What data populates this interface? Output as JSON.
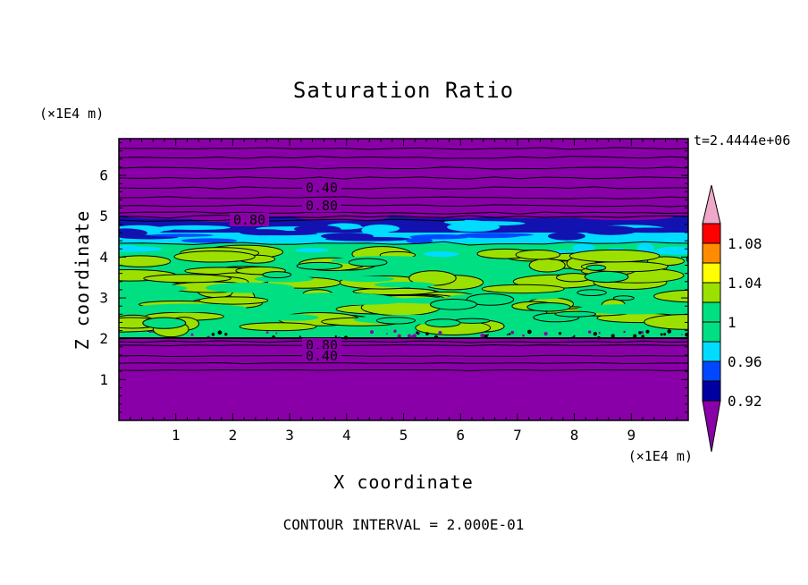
{
  "title": "Saturation Ratio",
  "timestamp": "t=2.4444e+06",
  "contour_note": "CONTOUR INTERVAL = 2.000E-01",
  "axes": {
    "x_label": "X coordinate",
    "y_label": "Z coordinate",
    "x_unit": "(×1E4 m)",
    "y_unit": "(×1E4 m)",
    "x_ticks": [
      "1",
      "2",
      "3",
      "4",
      "5",
      "6",
      "7",
      "8",
      "9"
    ],
    "y_ticks": [
      "1",
      "2",
      "3",
      "4",
      "5",
      "6"
    ]
  },
  "contour_labels": [
    {
      "text": "0.40"
    },
    {
      "text": "0.80"
    },
    {
      "text": "0.80"
    },
    {
      "text": "0.80"
    },
    {
      "text": "0.40"
    }
  ],
  "colorbar": {
    "labels": [
      {
        "text": "1.08"
      },
      {
        "text": "1.04"
      },
      {
        "text": "1"
      },
      {
        "text": "0.96"
      },
      {
        "text": "0.92"
      }
    ],
    "segments": [
      {
        "name": "above-range-arrow",
        "color": "#F0A8C8"
      },
      {
        "name": "band-1.08-1.10",
        "color": "#FF0000"
      },
      {
        "name": "band-1.06-1.08",
        "color": "#FF8C00"
      },
      {
        "name": "band-1.04-1.06",
        "color": "#FFFF00"
      },
      {
        "name": "band-1.02-1.04",
        "color": "#9CE000"
      },
      {
        "name": "band-1.00-1.02",
        "color": "#00E082"
      },
      {
        "name": "band-0.98-1.00",
        "color": "#00E082"
      },
      {
        "name": "band-0.96-0.98",
        "color": "#00DCFF"
      },
      {
        "name": "band-0.94-0.96",
        "color": "#0048FF"
      },
      {
        "name": "band-0.92-0.94",
        "color": "#0000A0"
      },
      {
        "name": "below-range-arrow",
        "color": "#8A00A8"
      }
    ]
  },
  "field_colors": {
    "purple": "#8A00A8",
    "navy": "#1212B0",
    "blue": "#0048FF",
    "cyan": "#00DCFF",
    "green": "#00E082",
    "yellow_green": "#9CE000"
  },
  "chart_data": {
    "type": "heatmap",
    "title": "Saturation Ratio",
    "xlabel": "X coordinate (×1E4 m)",
    "ylabel": "Z coordinate (×1E4 m)",
    "xlim": [
      0,
      10
    ],
    "ylim": [
      0,
      6.9
    ],
    "time_label": "t=2.4444e+06",
    "contour_interval": 0.2,
    "colorbar_tick_values": [
      0.92,
      0.96,
      1,
      1.04,
      1.08
    ],
    "labeled_contour_values": [
      0.4,
      0.8
    ],
    "legend_position": "right vertical colorbar with out-of-range arrow caps",
    "horizontal_bands": [
      {
        "z_range": [
          5.1,
          6.9
        ],
        "value": "below 0.92 (out of color range), contours 0.40 and 0.80 labeled",
        "color": "purple"
      },
      {
        "z_range": [
          4.7,
          5.1
        ],
        "value": "0.92-0.96",
        "color": "dark blue / navy with cyan patches"
      },
      {
        "z_range": [
          4.4,
          4.7
        ],
        "value": "0.96-1.00",
        "color": "cyan"
      },
      {
        "z_range": [
          2.05,
          4.4
        ],
        "value": "~1.00-1.04 mottled field",
        "color": "green with yellow-green blobs outlined in black"
      },
      {
        "z_range": [
          0,
          2.05
        ],
        "value": "below 0.92 (out of color range), contours 0.80 and 0.40 labeled",
        "color": "purple"
      }
    ]
  }
}
